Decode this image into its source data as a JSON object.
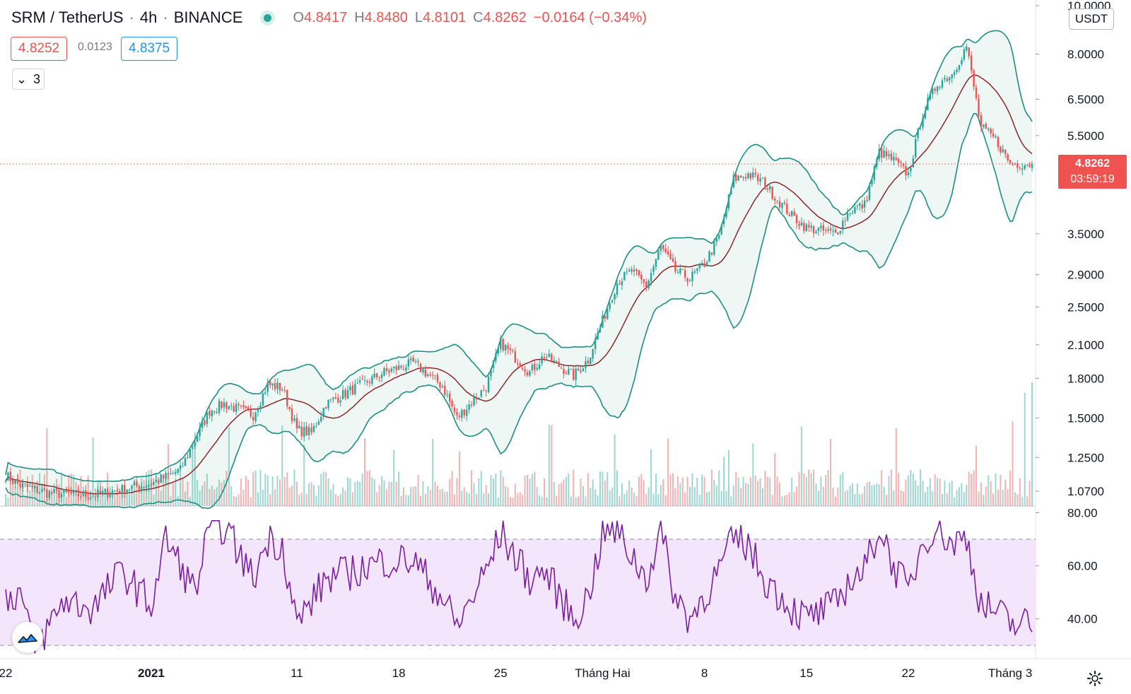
{
  "header": {
    "symbol": "SRM / TetherUS",
    "separator": "·",
    "interval": "4h",
    "exchange": "BINANCE",
    "ohlc": {
      "o_key": "O",
      "o_val": "4.8417",
      "h_key": "H",
      "h_val": "4.8480",
      "l_key": "L",
      "l_val": "4.8101",
      "c_key": "C",
      "c_val": "4.8262",
      "change": "−0.0164 (−0.34%)"
    }
  },
  "quote": {
    "bid": "4.8252",
    "spread": "0.0123",
    "ask": "4.8375"
  },
  "indicator_toggle": {
    "chevron": "⌄",
    "count": "3"
  },
  "currency": "USDT",
  "last_price": {
    "price": "4.8262",
    "countdown": "03:59:19"
  },
  "colors": {
    "up": "#26a69a",
    "down": "#ef5350",
    "band": "#1e8f82",
    "band_fill": "#eef7f4",
    "basis": "#8b1a1a",
    "rsi_line": "#7b1fa2",
    "rsi_fill": "#f3e5fb",
    "ask": "#2196f3"
  },
  "chart_data": [
    {
      "type": "candlestick",
      "title": "SRM / TetherUS · 4h · BINANCE",
      "y_scale": "log",
      "ylim": [
        1.0,
        10.0
      ],
      "y_ticks": [
        "10.0000",
        "8.0000",
        "6.5000",
        "5.5000",
        "3.5000",
        "2.9000",
        "2.5000",
        "2.1000",
        "1.8000",
        "1.5000",
        "1.2500",
        "1.0700"
      ],
      "x_ticks": [
        "22",
        "2021",
        "11",
        "18",
        "25",
        "Tháng Hai",
        "8",
        "15",
        "22",
        "Tháng 3"
      ],
      "anchors": [
        {
          "date": "Dec 22",
          "close": 1.15
        },
        {
          "date": "Dec 23",
          "close": 1.1
        },
        {
          "date": "Dec 25",
          "close": 1.06
        },
        {
          "date": "Dec 28",
          "close": 1.05
        },
        {
          "date": "Jan 1",
          "close": 1.11
        },
        {
          "date": "Jan 3",
          "close": 1.18
        },
        {
          "date": "Jan 5",
          "close": 1.55
        },
        {
          "date": "Jan 6",
          "close": 1.6
        },
        {
          "date": "Jan 8",
          "close": 1.52
        },
        {
          "date": "Jan 9",
          "close": 1.75
        },
        {
          "date": "Jan 10",
          "close": 1.72
        },
        {
          "date": "Jan 11",
          "close": 1.42
        },
        {
          "date": "Jan 12",
          "close": 1.4
        },
        {
          "date": "Jan 13",
          "close": 1.6
        },
        {
          "date": "Jan 15",
          "close": 1.72
        },
        {
          "date": "Jan 17",
          "close": 1.85
        },
        {
          "date": "Jan 19",
          "close": 1.93
        },
        {
          "date": "Jan 21",
          "close": 1.74
        },
        {
          "date": "Jan 22",
          "close": 1.5
        },
        {
          "date": "Jan 24",
          "close": 1.73
        },
        {
          "date": "Jan 25",
          "close": 2.12
        },
        {
          "date": "Jan 27",
          "close": 1.85
        },
        {
          "date": "Jan 28",
          "close": 2.0
        },
        {
          "date": "Jan 30",
          "close": 1.82
        },
        {
          "date": "Jan 31",
          "close": 1.96
        },
        {
          "date": "Feb 1",
          "close": 2.35
        },
        {
          "date": "Feb 2",
          "close": 2.8
        },
        {
          "date": "Feb 3",
          "close": 2.95
        },
        {
          "date": "Feb 4",
          "close": 2.75
        },
        {
          "date": "Feb 5",
          "close": 3.3
        },
        {
          "date": "Feb 6",
          "close": 2.95
        },
        {
          "date": "Feb 7",
          "close": 2.85
        },
        {
          "date": "Feb 8",
          "close": 3.05
        },
        {
          "date": "Feb 9",
          "close": 3.45
        },
        {
          "date": "Feb 10",
          "close": 4.5
        },
        {
          "date": "Feb 11",
          "close": 4.6
        },
        {
          "date": "Feb 12",
          "close": 4.45
        },
        {
          "date": "Feb 13",
          "close": 4.1
        },
        {
          "date": "Feb 14",
          "close": 3.8
        },
        {
          "date": "Feb 15",
          "close": 3.6
        },
        {
          "date": "Feb 17",
          "close": 3.5
        },
        {
          "date": "Feb 18",
          "close": 3.9
        },
        {
          "date": "Feb 19",
          "close": 4.0
        },
        {
          "date": "Feb 20",
          "close": 5.1
        },
        {
          "date": "Feb 21",
          "close": 4.9
        },
        {
          "date": "Feb 22",
          "close": 4.6
        },
        {
          "date": "Feb 23",
          "close": 6.1
        },
        {
          "date": "Feb 24",
          "close": 7.0
        },
        {
          "date": "Feb 25",
          "close": 7.3
        },
        {
          "date": "Feb 26",
          "close": 8.3
        },
        {
          "date": "Feb 27",
          "close": 5.7
        },
        {
          "date": "Feb 28",
          "close": 5.4
        },
        {
          "date": "Mar 1",
          "close": 4.83
        }
      ],
      "last_close": 4.8262
    },
    {
      "type": "line",
      "title": "RSI",
      "ylim": [
        25,
        82
      ],
      "y_ticks": [
        "80.00",
        "60.00",
        "40.00"
      ],
      "band": [
        30,
        70
      ],
      "anchors": [
        {
          "date": "Dec 22",
          "value": 48
        },
        {
          "date": "Dec 23",
          "value": 50
        },
        {
          "date": "Dec 24",
          "value": 28
        },
        {
          "date": "Dec 26",
          "value": 47
        },
        {
          "date": "Dec 28",
          "value": 44
        },
        {
          "date": "Dec 30",
          "value": 58
        },
        {
          "date": "Jan 1",
          "value": 45
        },
        {
          "date": "Jan 2",
          "value": 70
        },
        {
          "date": "Jan 4",
          "value": 50
        },
        {
          "date": "Jan 5",
          "value": 74
        },
        {
          "date": "Jan 6",
          "value": 75
        },
        {
          "date": "Jan 8",
          "value": 55
        },
        {
          "date": "Jan 9",
          "value": 70
        },
        {
          "date": "Jan 10",
          "value": 68
        },
        {
          "date": "Jan 11",
          "value": 38
        },
        {
          "date": "Jan 13",
          "value": 55
        },
        {
          "date": "Jan 15",
          "value": 58
        },
        {
          "date": "Jan 17",
          "value": 62
        },
        {
          "date": "Jan 19",
          "value": 62
        },
        {
          "date": "Jan 21",
          "value": 48
        },
        {
          "date": "Jan 22",
          "value": 37
        },
        {
          "date": "Jan 24",
          "value": 58
        },
        {
          "date": "Jan 25",
          "value": 72
        },
        {
          "date": "Jan 27",
          "value": 55
        },
        {
          "date": "Jan 28",
          "value": 58
        },
        {
          "date": "Jan 30",
          "value": 40
        },
        {
          "date": "Jan 31",
          "value": 48
        },
        {
          "date": "Feb 1",
          "value": 72
        },
        {
          "date": "Feb 2",
          "value": 73
        },
        {
          "date": "Feb 4",
          "value": 55
        },
        {
          "date": "Feb 5",
          "value": 73
        },
        {
          "date": "Feb 6",
          "value": 48
        },
        {
          "date": "Feb 7",
          "value": 40
        },
        {
          "date": "Feb 9",
          "value": 58
        },
        {
          "date": "Feb 10",
          "value": 70
        },
        {
          "date": "Feb 11",
          "value": 68
        },
        {
          "date": "Feb 12",
          "value": 56
        },
        {
          "date": "Feb 14",
          "value": 44
        },
        {
          "date": "Feb 15",
          "value": 40
        },
        {
          "date": "Feb 17",
          "value": 45
        },
        {
          "date": "Feb 18",
          "value": 55
        },
        {
          "date": "Feb 19",
          "value": 58
        },
        {
          "date": "Feb 20",
          "value": 75
        },
        {
          "date": "Feb 21",
          "value": 60
        },
        {
          "date": "Feb 22",
          "value": 50
        },
        {
          "date": "Feb 23",
          "value": 70
        },
        {
          "date": "Feb 24",
          "value": 75
        },
        {
          "date": "Feb 25",
          "value": 68
        },
        {
          "date": "Feb 26",
          "value": 71
        },
        {
          "date": "Feb 27",
          "value": 45
        },
        {
          "date": "Feb 28",
          "value": 43
        },
        {
          "date": "Mar 1",
          "value": 38
        }
      ]
    }
  ]
}
